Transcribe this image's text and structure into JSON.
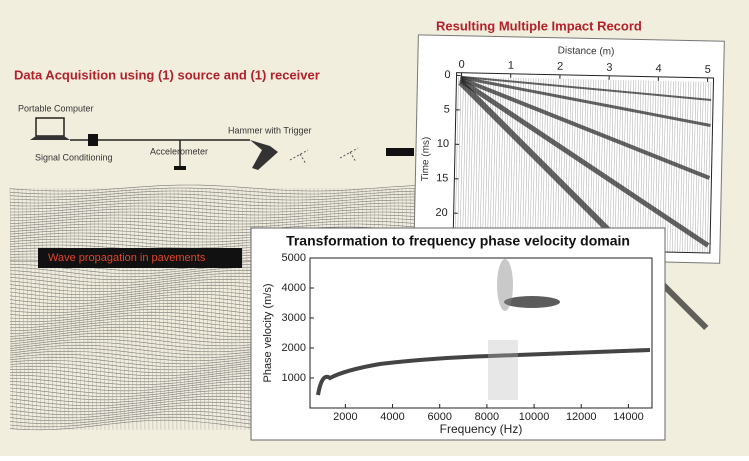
{
  "titles": {
    "record": "Resulting Multiple Impact Record",
    "acquisition": "Data Acquisition using (1) source and (1) receiver"
  },
  "equipment": {
    "computer": "Portable Computer",
    "conditioning": "Signal Conditioning",
    "accelerometer": "Accelerometer",
    "hammer": "Hammer with Trigger"
  },
  "wave_label": "Wave propagation in pavements",
  "impact_record": {
    "x_label": "Distance (m)",
    "y_label": "Time (ms)",
    "xlim": [
      -0.1,
      5.12
    ],
    "ylim": [
      -0.4,
      25
    ],
    "xticks": [
      0,
      1,
      2,
      3,
      4,
      5
    ],
    "yticks": [
      0,
      5,
      10,
      15,
      20
    ]
  },
  "dispersion": {
    "title": "Transformation to frequency phase velocity domain",
    "x_label": "Frequency (Hz)",
    "y_label": "Phase velocity (m/s)",
    "xlim": [
      500,
      15000
    ],
    "ylim": [
      0,
      5000
    ],
    "xticks": [
      2000,
      4000,
      6000,
      8000,
      10000,
      12000,
      14000
    ],
    "yticks": [
      1000,
      2000,
      3000,
      4000,
      5000
    ]
  }
}
